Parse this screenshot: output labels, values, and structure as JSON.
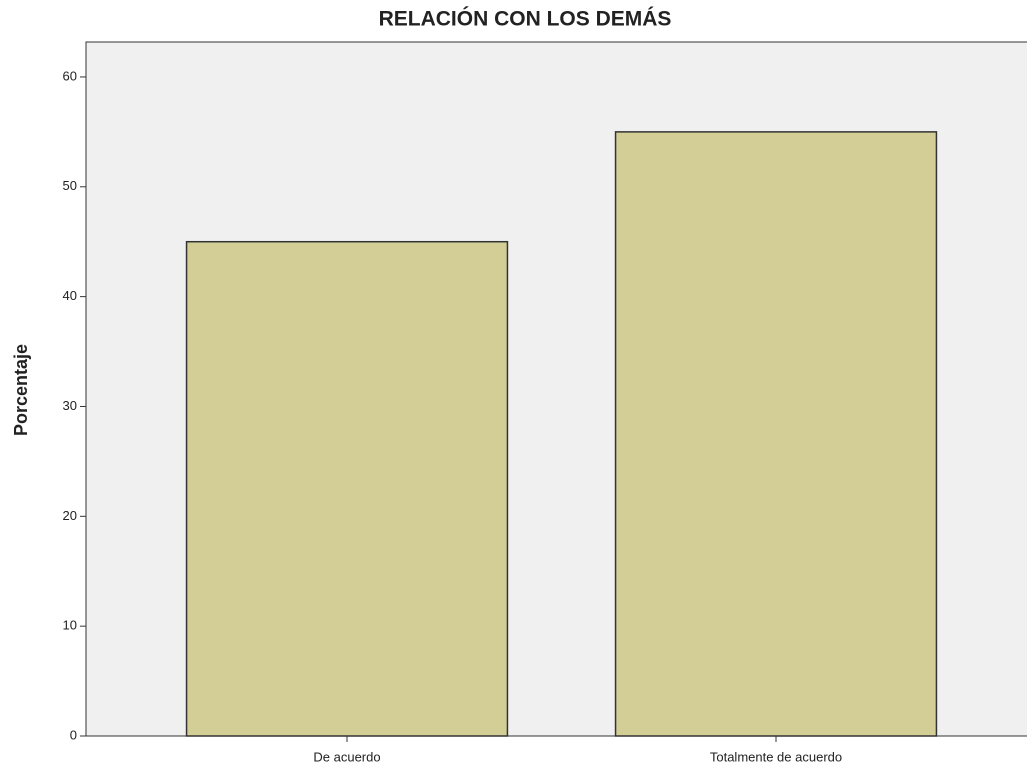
{
  "chart_data": {
    "type": "bar",
    "title": "RELACIÓN CON LOS DEMÁS",
    "y_label": "Porcentaje",
    "categories": [
      "De acuerdo",
      "Totalmente de acuerdo"
    ],
    "values": [
      45,
      55
    ],
    "color": "#d3cd96",
    "ylim": [
      0,
      63
    ],
    "yticks": [
      0,
      10,
      20,
      30,
      40,
      50,
      60
    ],
    "grid": false
  }
}
